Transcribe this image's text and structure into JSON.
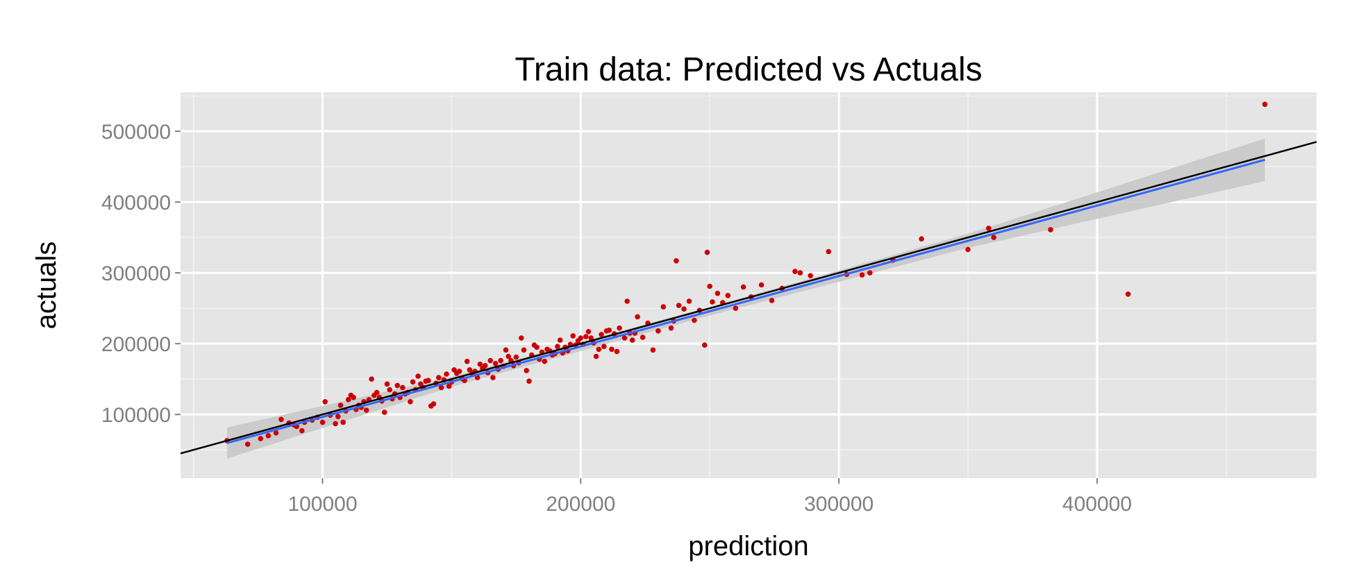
{
  "chart_data": {
    "type": "scatter",
    "title": "Train data: Predicted vs Actuals",
    "xlabel": "prediction",
    "ylabel": "actuals",
    "xlim": [
      45000,
      485000
    ],
    "ylim": [
      10000,
      555000
    ],
    "xticks": [
      100000,
      200000,
      300000,
      400000
    ],
    "xtick_labels": [
      "100000",
      "200000",
      "300000",
      "400000"
    ],
    "yticks": [
      100000,
      200000,
      300000,
      400000,
      500000
    ],
    "ytick_labels": [
      "100000",
      "200000",
      "300000",
      "400000",
      "500000"
    ],
    "grid": true,
    "legend": "none",
    "colors": {
      "panel": "#e5e5e5",
      "grid_major": "#ffffff",
      "grid_minor": "#f2f2f2",
      "points": "#cc0000",
      "smooth_line": "#3366ff",
      "confidence_band": "#c8c8c8",
      "reference_line": "#000000"
    },
    "reference_line": {
      "slope": 1.0,
      "intercept": 0
    },
    "smooth": {
      "x_range": [
        63000,
        465000
      ],
      "slope": 0.995,
      "intercept": -3000,
      "band": [
        [
          63000,
          22000
        ],
        [
          150000,
          7000
        ],
        [
          250000,
          6000
        ],
        [
          350000,
          10000
        ],
        [
          465000,
          30000
        ]
      ]
    },
    "points": [
      [
        63000,
        63000
      ],
      [
        71000,
        58000
      ],
      [
        76000,
        66000
      ],
      [
        79000,
        70000
      ],
      [
        82000,
        74000
      ],
      [
        84000,
        93000
      ],
      [
        87000,
        88000
      ],
      [
        89000,
        85000
      ],
      [
        90000,
        83000
      ],
      [
        92000,
        77000
      ],
      [
        93000,
        89000
      ],
      [
        96000,
        92000
      ],
      [
        98000,
        96000
      ],
      [
        100000,
        89000
      ],
      [
        101000,
        118000
      ],
      [
        103000,
        99000
      ],
      [
        105000,
        87000
      ],
      [
        106000,
        97000
      ],
      [
        107000,
        113000
      ],
      [
        108000,
        89000
      ],
      [
        109000,
        105000
      ],
      [
        110000,
        121000
      ],
      [
        111000,
        127000
      ],
      [
        112000,
        124000
      ],
      [
        113000,
        107000
      ],
      [
        114000,
        113000
      ],
      [
        115000,
        110000
      ],
      [
        116000,
        118000
      ],
      [
        117000,
        106000
      ],
      [
        118000,
        121000
      ],
      [
        119000,
        150000
      ],
      [
        120000,
        127000
      ],
      [
        121000,
        131000
      ],
      [
        122000,
        124000
      ],
      [
        123000,
        119000
      ],
      [
        124000,
        103000
      ],
      [
        125000,
        143000
      ],
      [
        126000,
        135000
      ],
      [
        127000,
        122000
      ],
      [
        128000,
        129000
      ],
      [
        129000,
        141000
      ],
      [
        130000,
        124000
      ],
      [
        131000,
        138000
      ],
      [
        132000,
        129000
      ],
      [
        133000,
        131000
      ],
      [
        134000,
        118000
      ],
      [
        135000,
        146000
      ],
      [
        136000,
        135000
      ],
      [
        137000,
        154000
      ],
      [
        138000,
        143000
      ],
      [
        139000,
        138000
      ],
      [
        140000,
        147000
      ],
      [
        141000,
        148000
      ],
      [
        142000,
        112000
      ],
      [
        143000,
        115000
      ],
      [
        144000,
        144000
      ],
      [
        145000,
        152000
      ],
      [
        146000,
        138000
      ],
      [
        147000,
        149000
      ],
      [
        148000,
        157000
      ],
      [
        149000,
        140000
      ],
      [
        150000,
        146000
      ],
      [
        151000,
        163000
      ],
      [
        152000,
        158000
      ],
      [
        153000,
        161000
      ],
      [
        154000,
        151000
      ],
      [
        155000,
        148000
      ],
      [
        156000,
        175000
      ],
      [
        157000,
        163000
      ],
      [
        158000,
        158000
      ],
      [
        159000,
        161000
      ],
      [
        160000,
        152000
      ],
      [
        161000,
        171000
      ],
      [
        162000,
        165000
      ],
      [
        163000,
        169000
      ],
      [
        164000,
        159000
      ],
      [
        165000,
        176000
      ],
      [
        166000,
        152000
      ],
      [
        167000,
        172000
      ],
      [
        168000,
        164000
      ],
      [
        169000,
        176000
      ],
      [
        170000,
        168000
      ],
      [
        171000,
        191000
      ],
      [
        172000,
        182000
      ],
      [
        173000,
        176000
      ],
      [
        174000,
        169000
      ],
      [
        175000,
        181000
      ],
      [
        176000,
        173000
      ],
      [
        177000,
        208000
      ],
      [
        178000,
        191000
      ],
      [
        179000,
        162000
      ],
      [
        180000,
        147000
      ],
      [
        181000,
        184000
      ],
      [
        182000,
        198000
      ],
      [
        183000,
        195000
      ],
      [
        184000,
        178000
      ],
      [
        185000,
        188000
      ],
      [
        186000,
        175000
      ],
      [
        187000,
        192000
      ],
      [
        188000,
        190000
      ],
      [
        189000,
        184000
      ],
      [
        190000,
        186000
      ],
      [
        191000,
        196000
      ],
      [
        192000,
        205000
      ],
      [
        193000,
        187000
      ],
      [
        194000,
        195000
      ],
      [
        195000,
        190000
      ],
      [
        196000,
        199000
      ],
      [
        197000,
        211000
      ],
      [
        198000,
        198000
      ],
      [
        199000,
        204000
      ],
      [
        200000,
        208000
      ],
      [
        201000,
        199000
      ],
      [
        202000,
        210000
      ],
      [
        203000,
        217000
      ],
      [
        204000,
        208000
      ],
      [
        205000,
        201000
      ],
      [
        206000,
        182000
      ],
      [
        207000,
        192000
      ],
      [
        208000,
        213000
      ],
      [
        209000,
        196000
      ],
      [
        210000,
        218000
      ],
      [
        211000,
        219000
      ],
      [
        212000,
        192000
      ],
      [
        213000,
        214000
      ],
      [
        214000,
        189000
      ],
      [
        215000,
        222000
      ],
      [
        217000,
        208000
      ],
      [
        218000,
        260000
      ],
      [
        219000,
        215000
      ],
      [
        220000,
        205000
      ],
      [
        221000,
        215000
      ],
      [
        222000,
        238000
      ],
      [
        224000,
        209000
      ],
      [
        226000,
        229000
      ],
      [
        228000,
        191000
      ],
      [
        230000,
        218000
      ],
      [
        232000,
        252000
      ],
      [
        235000,
        222000
      ],
      [
        236000,
        232000
      ],
      [
        237000,
        317000
      ],
      [
        238000,
        254000
      ],
      [
        240000,
        249000
      ],
      [
        242000,
        260000
      ],
      [
        244000,
        233000
      ],
      [
        246000,
        247000
      ],
      [
        248000,
        198000
      ],
      [
        249000,
        329000
      ],
      [
        250000,
        281000
      ],
      [
        251000,
        259000
      ],
      [
        253000,
        271000
      ],
      [
        255000,
        258000
      ],
      [
        257000,
        268000
      ],
      [
        260000,
        250000
      ],
      [
        263000,
        280000
      ],
      [
        266000,
        266000
      ],
      [
        270000,
        283000
      ],
      [
        274000,
        261000
      ],
      [
        278000,
        278000
      ],
      [
        283000,
        302000
      ],
      [
        285000,
        300000
      ],
      [
        289000,
        296000
      ],
      [
        296000,
        330000
      ],
      [
        303000,
        298000
      ],
      [
        309000,
        297000
      ],
      [
        312000,
        300000
      ],
      [
        321000,
        318000
      ],
      [
        332000,
        348000
      ],
      [
        350000,
        333000
      ],
      [
        358000,
        363000
      ],
      [
        360000,
        350000
      ],
      [
        382000,
        361000
      ],
      [
        412000,
        270000
      ],
      [
        465000,
        538000
      ]
    ]
  }
}
